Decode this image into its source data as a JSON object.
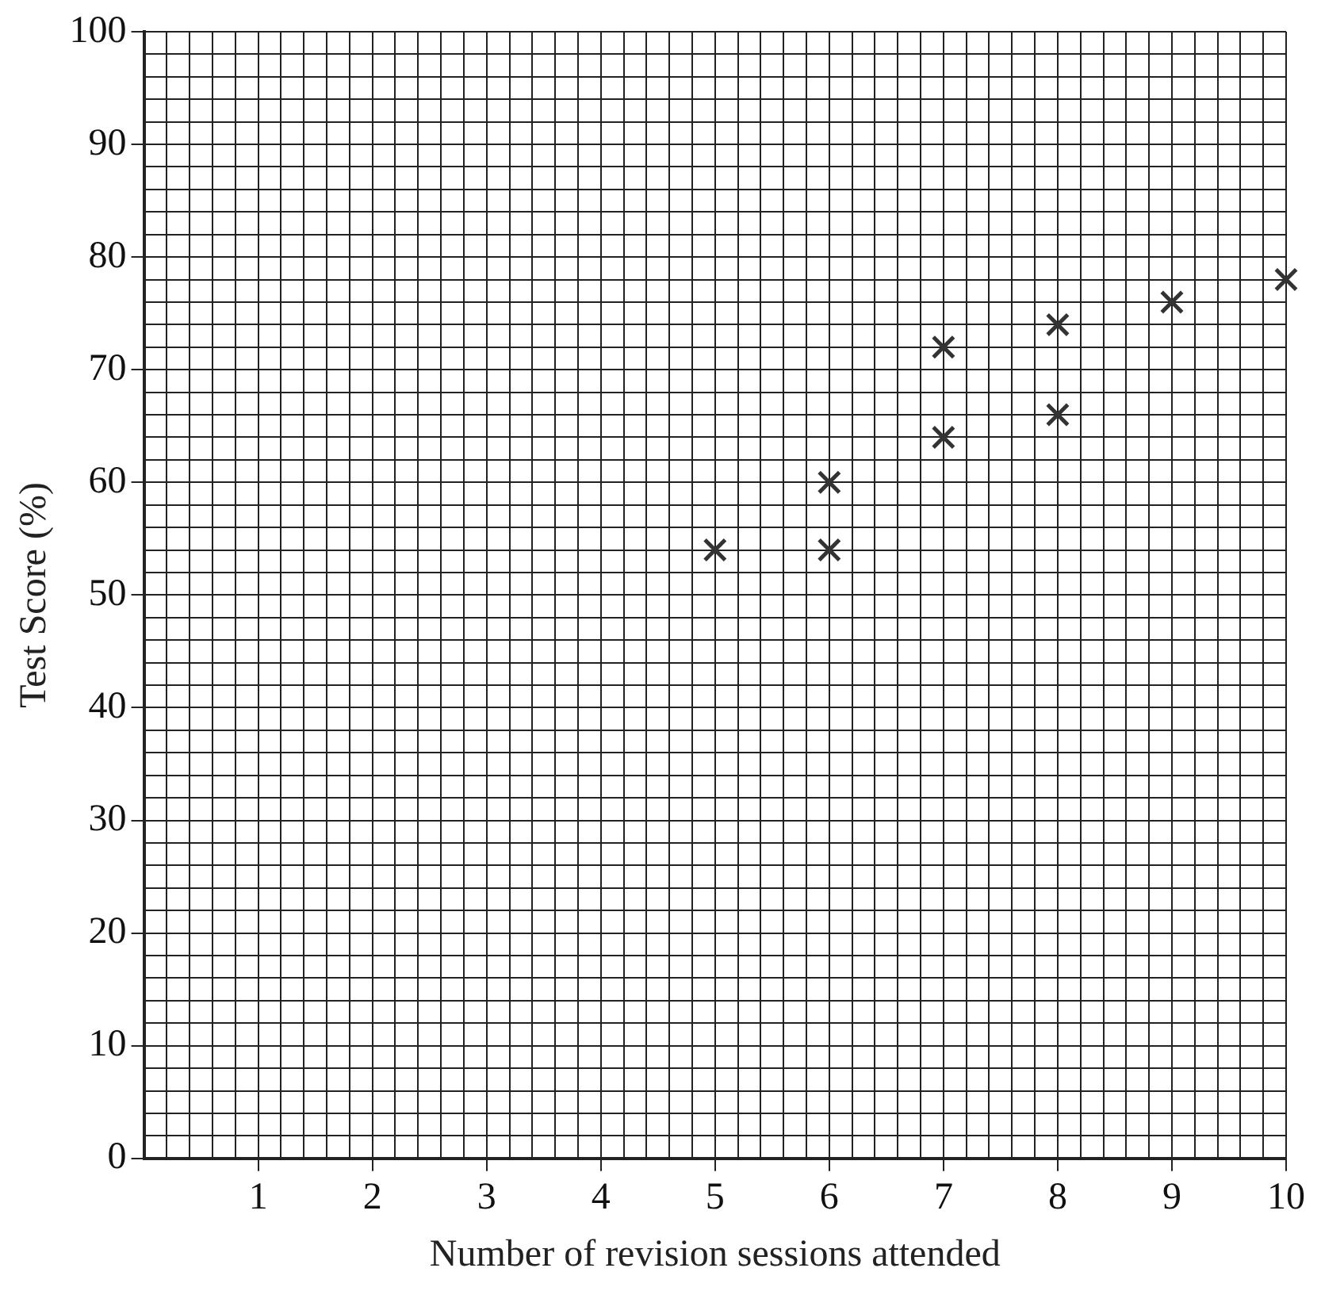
{
  "chart_data": {
    "type": "scatter",
    "xlabel": "Number of revision sessions attended",
    "ylabel": "Test Score (%)",
    "x": [
      5,
      6,
      6,
      7,
      7,
      8,
      8,
      9,
      10
    ],
    "values": [
      54,
      60,
      54,
      72,
      64,
      74,
      66,
      76,
      78
    ],
    "color": "#333333",
    "marker": "cross",
    "grid": true,
    "xlim": [
      0,
      10
    ],
    "ylim": [
      0,
      100
    ],
    "xticks": [
      {
        "value": 0,
        "label": null
      },
      {
        "value": 0.2,
        "label": null
      },
      {
        "value": 0.4,
        "label": null
      },
      {
        "value": 0.6,
        "label": null
      },
      {
        "value": 0.8,
        "label": null
      },
      1,
      {
        "value": 1.2,
        "label": null
      },
      {
        "value": 1.4,
        "label": null
      },
      {
        "value": 1.6,
        "label": null
      },
      {
        "value": 1.8,
        "label": null
      },
      2,
      {
        "value": 2.2,
        "label": null
      },
      {
        "value": 2.4,
        "label": null
      },
      {
        "value": 2.6,
        "label": null
      },
      {
        "value": 2.8,
        "label": null
      },
      3,
      {
        "value": 3.2,
        "label": null
      },
      {
        "value": 3.4,
        "label": null
      },
      {
        "value": 3.6,
        "label": null
      },
      {
        "value": 3.8,
        "label": null
      },
      4,
      {
        "value": 4.2,
        "label": null
      },
      {
        "value": 4.4,
        "label": null
      },
      {
        "value": 4.6,
        "label": null
      },
      {
        "value": 4.8,
        "label": null
      },
      5,
      {
        "value": 5.2,
        "label": null
      },
      {
        "value": 5.4,
        "label": null
      },
      {
        "value": 5.6,
        "label": null
      },
      {
        "value": 5.8,
        "label": null
      },
      6,
      {
        "value": 6.2,
        "label": null
      },
      {
        "value": 6.4,
        "label": null
      },
      {
        "value": 6.6,
        "label": null
      },
      {
        "value": 6.8,
        "label": null
      },
      7,
      {
        "value": 7.2,
        "label": null
      },
      {
        "value": 7.4,
        "label": null
      },
      {
        "value": 7.6,
        "label": null
      },
      {
        "value": 7.8,
        "label": null
      },
      8,
      {
        "value": 8.2,
        "label": null
      },
      {
        "value": 8.4,
        "label": null
      },
      {
        "value": 8.6,
        "label": null
      },
      {
        "value": 8.8,
        "label": null
      },
      9,
      {
        "value": 9.2,
        "label": null
      },
      {
        "value": 9.4,
        "label": null
      },
      {
        "value": 9.6,
        "label": null
      },
      {
        "value": 9.8,
        "label": null
      },
      10
    ],
    "yticks": [
      0,
      {
        "value": 2,
        "label": null
      },
      {
        "value": 4,
        "label": null
      },
      {
        "value": 6,
        "label": null
      },
      {
        "value": 8,
        "label": null
      },
      10,
      {
        "value": 12,
        "label": null
      },
      {
        "value": 14,
        "label": null
      },
      {
        "value": 16,
        "label": null
      },
      {
        "value": 18,
        "label": null
      },
      20,
      {
        "value": 22,
        "label": null
      },
      {
        "value": 24,
        "label": null
      },
      {
        "value": 26,
        "label": null
      },
      {
        "value": 28,
        "label": null
      },
      30,
      {
        "value": 32,
        "label": null
      },
      {
        "value": 34,
        "label": null
      },
      {
        "value": 36,
        "label": null
      },
      {
        "value": 38,
        "label": null
      },
      40,
      {
        "value": 42,
        "label": null
      },
      {
        "value": 44,
        "label": null
      },
      {
        "value": 46,
        "label": null
      },
      {
        "value": 48,
        "label": null
      },
      50,
      {
        "value": 52,
        "label": null
      },
      {
        "value": 54,
        "label": null
      },
      {
        "value": 56,
        "label": null
      },
      {
        "value": 58,
        "label": null
      },
      60,
      {
        "value": 62,
        "label": null
      },
      {
        "value": 64,
        "label": null
      },
      {
        "value": 66,
        "label": null
      },
      {
        "value": 68,
        "label": null
      },
      70,
      {
        "value": 72,
        "label": null
      },
      {
        "value": 74,
        "label": null
      },
      {
        "value": 76,
        "label": null
      },
      {
        "value": 78,
        "label": null
      },
      80,
      {
        "value": 82,
        "label": null
      },
      {
        "value": 84,
        "label": null
      },
      {
        "value": 86,
        "label": null
      },
      {
        "value": 88,
        "label": null
      },
      90,
      {
        "value": 92,
        "label": null
      },
      {
        "value": 94,
        "label": null
      },
      {
        "value": 96,
        "label": null
      },
      {
        "value": 98,
        "label": null
      },
      100
    ]
  }
}
